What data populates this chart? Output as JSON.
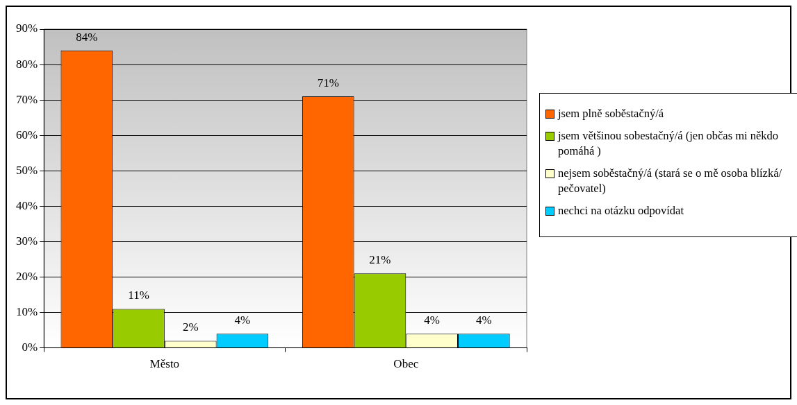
{
  "chart_data": {
    "type": "bar",
    "categories": [
      "Město",
      "Obec"
    ],
    "series": [
      {
        "name": "jsem plně soběstačný/á",
        "color": "#ff6600",
        "values": [
          84,
          71
        ],
        "value_labels": [
          "84%",
          "71%"
        ]
      },
      {
        "name": "jsem většinou sobestačný/á  (jen občas mi někdo pomáhá )",
        "color": "#99cc00",
        "values": [
          11,
          21
        ],
        "value_labels": [
          "11%",
          "21%"
        ]
      },
      {
        "name": "nejsem soběstačný/á (stará se o mě osoba blízká/ pečovatel)",
        "color": "#ffffcc",
        "values": [
          2,
          4
        ],
        "value_labels": [
          "2%",
          "4%"
        ]
      },
      {
        "name": "nechci na otázku odpovídat",
        "color": "#00ccff",
        "values": [
          4,
          4
        ],
        "value_labels": [
          "4%",
          "4%"
        ]
      }
    ],
    "ylim": [
      0,
      90
    ],
    "yticks": [
      {
        "value": 0,
        "label": "0%"
      },
      {
        "value": 10,
        "label": "10%"
      },
      {
        "value": 20,
        "label": "20%"
      },
      {
        "value": 30,
        "label": "30%"
      },
      {
        "value": 40,
        "label": "40%"
      },
      {
        "value": 50,
        "label": "50%"
      },
      {
        "value": 60,
        "label": "60%"
      },
      {
        "value": 70,
        "label": "70%"
      },
      {
        "value": 80,
        "label": "80%"
      },
      {
        "value": 90,
        "label": "90%"
      }
    ],
    "grid": "y",
    "legend": "right"
  }
}
